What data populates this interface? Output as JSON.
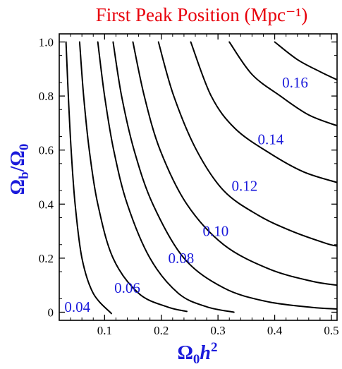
{
  "chart_data": {
    "type": "contour",
    "title": "First Peak Position (Mpc⁻¹)",
    "xlabel": {
      "main": "Ω",
      "sub": "0",
      "italic": "h",
      "sup": "2"
    },
    "ylabel": {
      "main": "Ω",
      "sub": "b",
      "sep": "/Ω",
      "sub2": "0"
    },
    "xlim": [
      0.02,
      0.51
    ],
    "ylim": [
      -0.03,
      1.03
    ],
    "xticks": [
      {
        "value": 0.1,
        "label": "0.1"
      },
      {
        "value": 0.2,
        "label": "0.2"
      },
      {
        "value": 0.3,
        "label": "0.3"
      },
      {
        "value": 0.4,
        "label": "0.4"
      },
      {
        "value": 0.5,
        "label": "0.5"
      }
    ],
    "yticks": [
      {
        "value": 0.0,
        "label": "0"
      },
      {
        "value": 0.2,
        "label": "0.2"
      },
      {
        "value": 0.4,
        "label": "0.4"
      },
      {
        "value": 0.6,
        "label": "0.6"
      },
      {
        "value": 0.8,
        "label": "0.8"
      },
      {
        "value": 1.0,
        "label": "1.0"
      }
    ],
    "colors": {
      "title": "#e8000b",
      "axis_label": "#1a1adb",
      "contour_label": "#1a1adb",
      "line": "#000000"
    },
    "contours": [
      {
        "level": 0.04,
        "label": "0.04",
        "label_x": 0.052,
        "label_y": 0.02,
        "points": [
          [
            0.032,
            1.0
          ],
          [
            0.036,
            0.8
          ],
          [
            0.041,
            0.6
          ],
          [
            0.048,
            0.4
          ],
          [
            0.06,
            0.2
          ],
          [
            0.08,
            0.07
          ],
          [
            0.112,
            -0.005
          ]
        ]
      },
      {
        "level": 0.06,
        "label": "0.06",
        "label_x": 0.14,
        "label_y": 0.09,
        "points": [
          [
            0.056,
            1.0
          ],
          [
            0.063,
            0.8
          ],
          [
            0.073,
            0.6
          ],
          [
            0.088,
            0.4
          ],
          [
            0.115,
            0.2
          ],
          [
            0.16,
            0.07
          ],
          [
            0.21,
            0.02
          ],
          [
            0.245,
            0.003
          ]
        ]
      },
      {
        "level": 0.08,
        "label": "0.08",
        "label_x": 0.235,
        "label_y": 0.2,
        "points": [
          [
            0.088,
            1.0
          ],
          [
            0.1,
            0.8
          ],
          [
            0.116,
            0.6
          ],
          [
            0.14,
            0.4
          ],
          [
            0.18,
            0.2
          ],
          [
            0.23,
            0.07
          ],
          [
            0.28,
            0.02
          ],
          [
            0.328,
            0.0
          ]
        ]
      },
      {
        "level": 0.1,
        "label": "0.10",
        "label_x": 0.296,
        "label_y": 0.3,
        "points": [
          [
            0.115,
            1.0
          ],
          [
            0.13,
            0.8
          ],
          [
            0.152,
            0.6
          ],
          [
            0.185,
            0.4
          ],
          [
            0.24,
            0.2
          ],
          [
            0.31,
            0.09
          ],
          [
            0.385,
            0.04
          ],
          [
            0.465,
            0.018
          ],
          [
            0.51,
            0.012
          ]
        ]
      },
      {
        "level": 0.12,
        "label": "0.12",
        "label_x": 0.347,
        "label_y": 0.468,
        "points": [
          [
            0.15,
            1.0
          ],
          [
            0.17,
            0.8
          ],
          [
            0.198,
            0.6
          ],
          [
            0.245,
            0.4
          ],
          [
            0.31,
            0.25
          ],
          [
            0.39,
            0.16
          ],
          [
            0.465,
            0.115
          ],
          [
            0.51,
            0.1
          ]
        ]
      },
      {
        "level": 0.14,
        "label": "0.14",
        "label_x": 0.393,
        "label_y": 0.64,
        "points": [
          [
            0.195,
            1.0
          ],
          [
            0.222,
            0.8
          ],
          [
            0.262,
            0.6
          ],
          [
            0.31,
            0.45
          ],
          [
            0.37,
            0.36
          ],
          [
            0.43,
            0.3
          ],
          [
            0.49,
            0.255
          ],
          [
            0.51,
            0.245
          ]
        ]
      },
      {
        "level": 0.16,
        "label": "0.16",
        "label_x": 0.436,
        "label_y": 0.85,
        "points": [
          [
            0.252,
            1.0
          ],
          [
            0.288,
            0.8
          ],
          [
            0.33,
            0.68
          ],
          [
            0.39,
            0.59
          ],
          [
            0.45,
            0.52
          ],
          [
            0.51,
            0.48
          ]
        ]
      },
      {
        "level": 0.18,
        "label": "",
        "points": [
          [
            0.32,
            1.0
          ],
          [
            0.36,
            0.88
          ],
          [
            0.41,
            0.8
          ],
          [
            0.46,
            0.73
          ],
          [
            0.51,
            0.69
          ]
        ]
      },
      {
        "level": 0.2,
        "label": "",
        "points": [
          [
            0.4,
            1.0
          ],
          [
            0.44,
            0.935
          ],
          [
            0.48,
            0.89
          ],
          [
            0.51,
            0.86
          ]
        ]
      }
    ]
  }
}
